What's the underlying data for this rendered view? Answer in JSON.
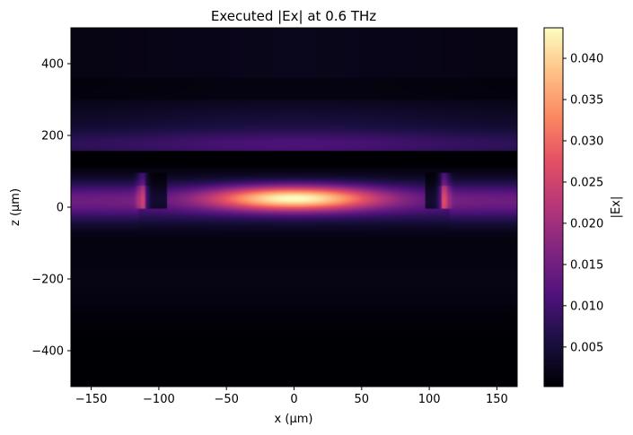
{
  "chart_data": {
    "type": "heatmap",
    "title": "Executed |Ex| at 0.6 THz",
    "xlabel": "x (µm)",
    "ylabel": "z (µm)",
    "xlim": [
      -165,
      165
    ],
    "ylim": [
      -500,
      500
    ],
    "x_ticks": [
      -150,
      -100,
      -50,
      0,
      50,
      100,
      150
    ],
    "x_tick_labels": [
      "−150",
      "−100",
      "−50",
      "0",
      "50",
      "100",
      "150"
    ],
    "y_ticks": [
      -400,
      -200,
      0,
      200,
      400
    ],
    "y_tick_labels": [
      "−400",
      "−200",
      "0",
      "200",
      "400"
    ],
    "colormap": "magma",
    "colorbar": {
      "label": "|Ex|",
      "range": [
        0.0002,
        0.0437
      ],
      "ticks": [
        0.005,
        0.01,
        0.015,
        0.02,
        0.025,
        0.03,
        0.035,
        0.04
      ],
      "tick_labels": [
        "0.005",
        "0.010",
        "0.015",
        "0.020",
        "0.025",
        "0.030",
        "0.035",
        "0.040"
      ]
    },
    "features": {
      "interface_z": 155,
      "field_peak": {
        "x": 0,
        "z": 25,
        "value": 0.043
      },
      "side_pillars_x": [
        -110,
        105
      ],
      "upper_band_z": [
        160,
        330
      ],
      "guided_band_z": [
        -120,
        120
      ]
    }
  }
}
